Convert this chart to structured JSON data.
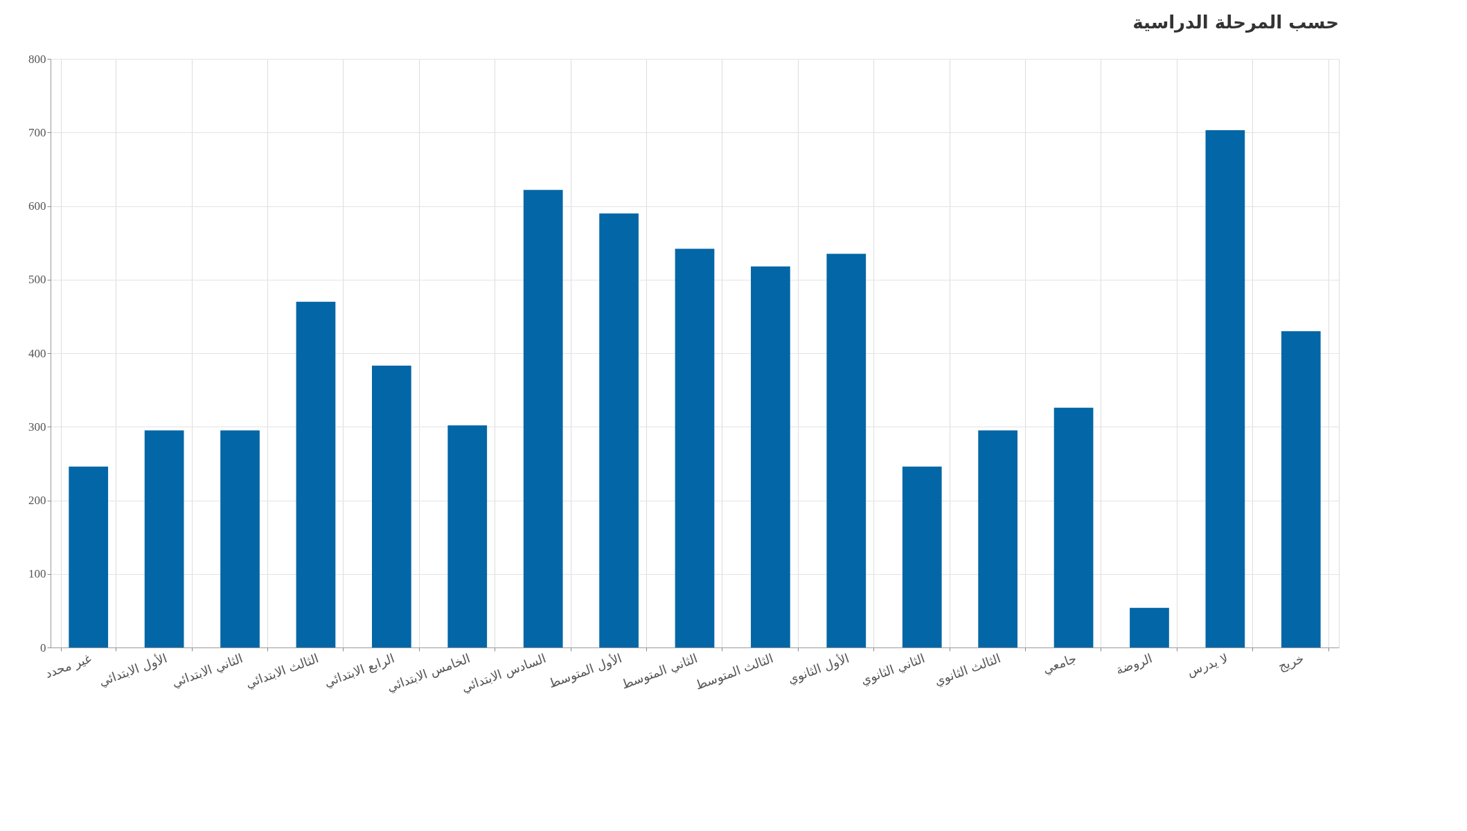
{
  "chart_data": {
    "type": "bar",
    "title": "حسب المرحلة الدراسية",
    "categories": [
      "غير محدد",
      "الأول الابتدائي",
      "الثاني الابتدائي",
      "الثالث الابتدائي",
      "الرابع الابتدائي",
      "الخامس الابتدائي",
      "السادس الابتدائي",
      "الأول المتوسط",
      "الثاني المتوسط",
      "الثالث المتوسط",
      "الأول الثانوي",
      "الثاني الثانوي",
      "الثالث الثانوي",
      "جامعي",
      "الروضة",
      "لا يدرس",
      "خريج"
    ],
    "values": [
      246,
      295,
      295,
      470,
      383,
      302,
      622,
      590,
      542,
      518,
      535,
      246,
      295,
      326,
      54,
      703,
      430
    ],
    "color": "#0366a6",
    "ylim": [
      0,
      800
    ],
    "yticks": [
      0,
      100,
      200,
      300,
      400,
      500,
      600,
      700,
      800
    ],
    "grid": true
  }
}
